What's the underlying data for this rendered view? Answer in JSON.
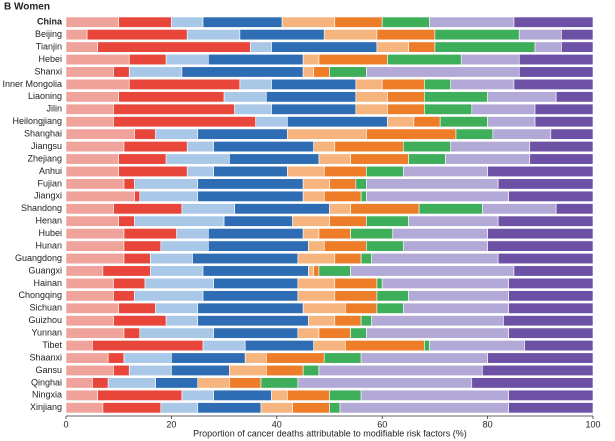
{
  "chart_data": {
    "type": "stacked_barh",
    "panel_label": "B",
    "title": "Women",
    "xlabel": "Proportion of cancer deaths attributable to modifiable risk factors (%)",
    "xlim": [
      0,
      100
    ],
    "xticks": [
      0,
      20,
      40,
      60,
      80,
      100
    ],
    "categories": [
      "China",
      "Beijing",
      "Tianjin",
      "Hebei",
      "Shanxi",
      "Inner Mongolia",
      "Liaoning",
      "Jilin",
      "Heilongjiang",
      "Shanghai",
      "Jiangsu",
      "Zhejiang",
      "Anhui",
      "Fujian",
      "Jiangxi",
      "Shandong",
      "Henan",
      "Hubei",
      "Hunan",
      "Guangdong",
      "Guangxi",
      "Hainan",
      "Chongqing",
      "Sichuan",
      "Guizhou",
      "Yunnan",
      "Tibet",
      "Shaanxi",
      "Gansu",
      "Qinghai",
      "Ningxia",
      "Xinjiang"
    ],
    "series": [
      {
        "color": "#f0a39b",
        "values": [
          10,
          4,
          6,
          12,
          9,
          12,
          10,
          9,
          9,
          13,
          11,
          10,
          10,
          11,
          13,
          9,
          10,
          11,
          11,
          11,
          7,
          9,
          9,
          10,
          9,
          11,
          5,
          8,
          9,
          5,
          6,
          7
        ]
      },
      {
        "color": "#e8463a",
        "values": [
          10,
          19,
          29,
          7,
          3,
          21,
          20,
          23,
          27,
          4,
          12,
          9,
          13,
          2,
          1,
          13,
          3,
          10,
          7,
          5,
          9,
          6,
          4,
          7,
          10,
          3,
          21,
          3,
          3,
          3,
          16,
          11
        ]
      },
      {
        "color": "#a9c8e8",
        "values": [
          6,
          10,
          4,
          8,
          10,
          6,
          8,
          7,
          6,
          8,
          5,
          12,
          5,
          12,
          11,
          10,
          17,
          6,
          9,
          8,
          10,
          13,
          13,
          8,
          6,
          14,
          8,
          9,
          8,
          9,
          6,
          7
        ]
      },
      {
        "color": "#2e6db4",
        "values": [
          15,
          16,
          20,
          18,
          23,
          16,
          17,
          16,
          19,
          17,
          19,
          17,
          14,
          20,
          20,
          18,
          13,
          18,
          19,
          20,
          20,
          16,
          18,
          20,
          21,
          16,
          13,
          14,
          11,
          8,
          11,
          12
        ]
      },
      {
        "color": "#f6b57f",
        "values": [
          10,
          10,
          6,
          3,
          2,
          5,
          6,
          6,
          5,
          15,
          4,
          6,
          7,
          5,
          4,
          4,
          7,
          3,
          3,
          7,
          1,
          7,
          7,
          8,
          5,
          4,
          6,
          4,
          7,
          6,
          3,
          6
        ]
      },
      {
        "color": "#ee7d2a",
        "values": [
          9,
          11,
          5,
          13,
          3,
          8,
          7,
          7,
          5,
          17,
          13,
          11,
          8,
          5,
          7,
          13,
          7,
          6,
          8,
          5,
          1,
          8,
          8,
          6,
          5,
          6,
          15,
          11,
          7,
          6,
          8,
          7
        ]
      },
      {
        "color": "#3fae5a",
        "values": [
          9,
          16,
          19,
          14,
          7,
          5,
          12,
          9,
          9,
          7,
          9,
          7,
          7,
          2,
          1,
          12,
          8,
          8,
          7,
          2,
          6,
          1,
          6,
          5,
          2,
          3,
          1,
          7,
          3,
          7,
          6,
          2
        ]
      },
      {
        "color": "#b3a9d6",
        "values": [
          16,
          8,
          5,
          11,
          29,
          12,
          13,
          12,
          9,
          11,
          15,
          16,
          16,
          25,
          27,
          14,
          17,
          18,
          16,
          24,
          31,
          24,
          19,
          20,
          25,
          27,
          18,
          24,
          31,
          33,
          28,
          32
        ]
      },
      {
        "color": "#6c51a4",
        "values": [
          15,
          6,
          6,
          14,
          14,
          15,
          7,
          11,
          11,
          8,
          12,
          12,
          20,
          18,
          16,
          7,
          18,
          20,
          20,
          18,
          15,
          16,
          16,
          16,
          17,
          16,
          13,
          20,
          21,
          23,
          16,
          16
        ]
      }
    ]
  }
}
